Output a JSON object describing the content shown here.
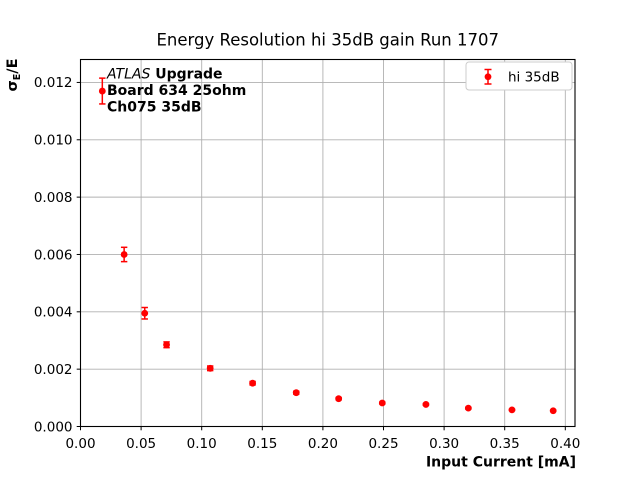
{
  "figure": {
    "background": "#ffffff"
  },
  "chart_data": {
    "type": "scatter",
    "title": "Energy Resolution hi 35dB gain Run 1707",
    "xlabel": "Input Current [mA]",
    "ylabel": "σ_E/E",
    "ylabel_parts": {
      "base": "σ",
      "subscript": "E",
      "suffix": "/E"
    },
    "xlim": [
      0,
      0.408
    ],
    "ylim": [
      0,
      0.0128
    ],
    "grid": true,
    "grid_color": "#b0b0b0",
    "spine_color": "#000000",
    "xticks": {
      "values": [
        0.0,
        0.05,
        0.1,
        0.15,
        0.2,
        0.25,
        0.3,
        0.35,
        0.4
      ],
      "labels": [
        "0.00",
        "0.05",
        "0.10",
        "0.15",
        "0.20",
        "0.25",
        "0.30",
        "0.35",
        "0.40"
      ]
    },
    "yticks": {
      "values": [
        0.0,
        0.002,
        0.004,
        0.006,
        0.008,
        0.01,
        0.012
      ],
      "labels": [
        "0.000",
        "0.002",
        "0.004",
        "0.006",
        "0.008",
        "0.010",
        "0.012"
      ]
    },
    "legend": {
      "label": "hi 35dB",
      "position": "upper-right",
      "border_color": "#cccccc",
      "fill": "#ffffff"
    },
    "annotation": {
      "line1_italic": "ATLAS",
      "line1_bold": " Upgrade",
      "line2": "Board 634 25ohm",
      "line3": "Ch075 35dB"
    },
    "series": [
      {
        "name": "hi 35dB",
        "color": "#ff0000",
        "marker": "circle",
        "points": [
          {
            "x": 0.018,
            "y": 0.0117,
            "yerr": 0.00045
          },
          {
            "x": 0.036,
            "y": 0.006,
            "yerr": 0.00025
          },
          {
            "x": 0.053,
            "y": 0.00395,
            "yerr": 0.0002
          },
          {
            "x": 0.071,
            "y": 0.00285,
            "yerr": 0.0001
          },
          {
            "x": 0.107,
            "y": 0.00203,
            "yerr": 8e-05
          },
          {
            "x": 0.142,
            "y": 0.00151,
            "yerr": 6e-05
          },
          {
            "x": 0.178,
            "y": 0.00118,
            "yerr": 5e-05
          },
          {
            "x": 0.213,
            "y": 0.00097,
            "yerr": 4e-05
          },
          {
            "x": 0.249,
            "y": 0.00082,
            "yerr": 3e-05
          },
          {
            "x": 0.285,
            "y": 0.00077,
            "yerr": 3e-05
          },
          {
            "x": 0.32,
            "y": 0.00064,
            "yerr": 3e-05
          },
          {
            "x": 0.356,
            "y": 0.00058,
            "yerr": 2e-05
          },
          {
            "x": 0.39,
            "y": 0.00055,
            "yerr": 2e-05
          }
        ]
      }
    ]
  }
}
